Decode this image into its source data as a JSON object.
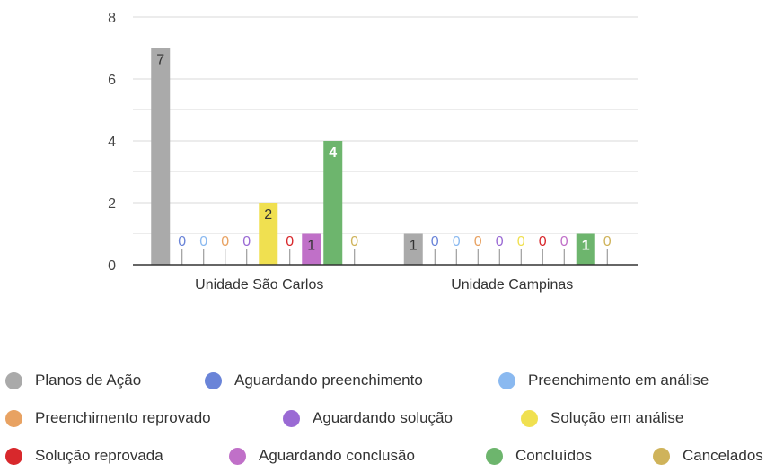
{
  "chart_data": {
    "type": "bar",
    "categories": [
      "Unidade São Carlos",
      "Unidade Campinas"
    ],
    "series": [
      {
        "name": "Planos de Ação",
        "color": "#aaaaaa",
        "values": [
          7,
          1
        ]
      },
      {
        "name": "Aguardando preenchimento",
        "color": "#6a84d8",
        "values": [
          0,
          0
        ]
      },
      {
        "name": "Preenchimento em análise",
        "color": "#8ab9f0",
        "values": [
          0,
          0
        ]
      },
      {
        "name": "Preenchimento reprovado",
        "color": "#e8a262",
        "values": [
          0,
          0
        ]
      },
      {
        "name": "Aguardando solução",
        "color": "#9a6ad4",
        "values": [
          0,
          0
        ]
      },
      {
        "name": "Solução em análise",
        "color": "#f0e050",
        "values": [
          2,
          0
        ]
      },
      {
        "name": "Solução reprovada",
        "color": "#d8282c",
        "values": [
          0,
          0
        ]
      },
      {
        "name": "Aguardando conclusão",
        "color": "#c070c8",
        "values": [
          1,
          0
        ]
      },
      {
        "name": "Concluídos",
        "color": "#6db56d",
        "values": [
          4,
          1
        ]
      },
      {
        "name": "Cancelados",
        "color": "#cfb35a",
        "values": [
          0,
          0
        ]
      }
    ],
    "ylim": [
      0,
      8
    ],
    "yticks": [
      0,
      2,
      4,
      6,
      8
    ],
    "grid": true,
    "legend": "bottom",
    "data_labels": true
  }
}
